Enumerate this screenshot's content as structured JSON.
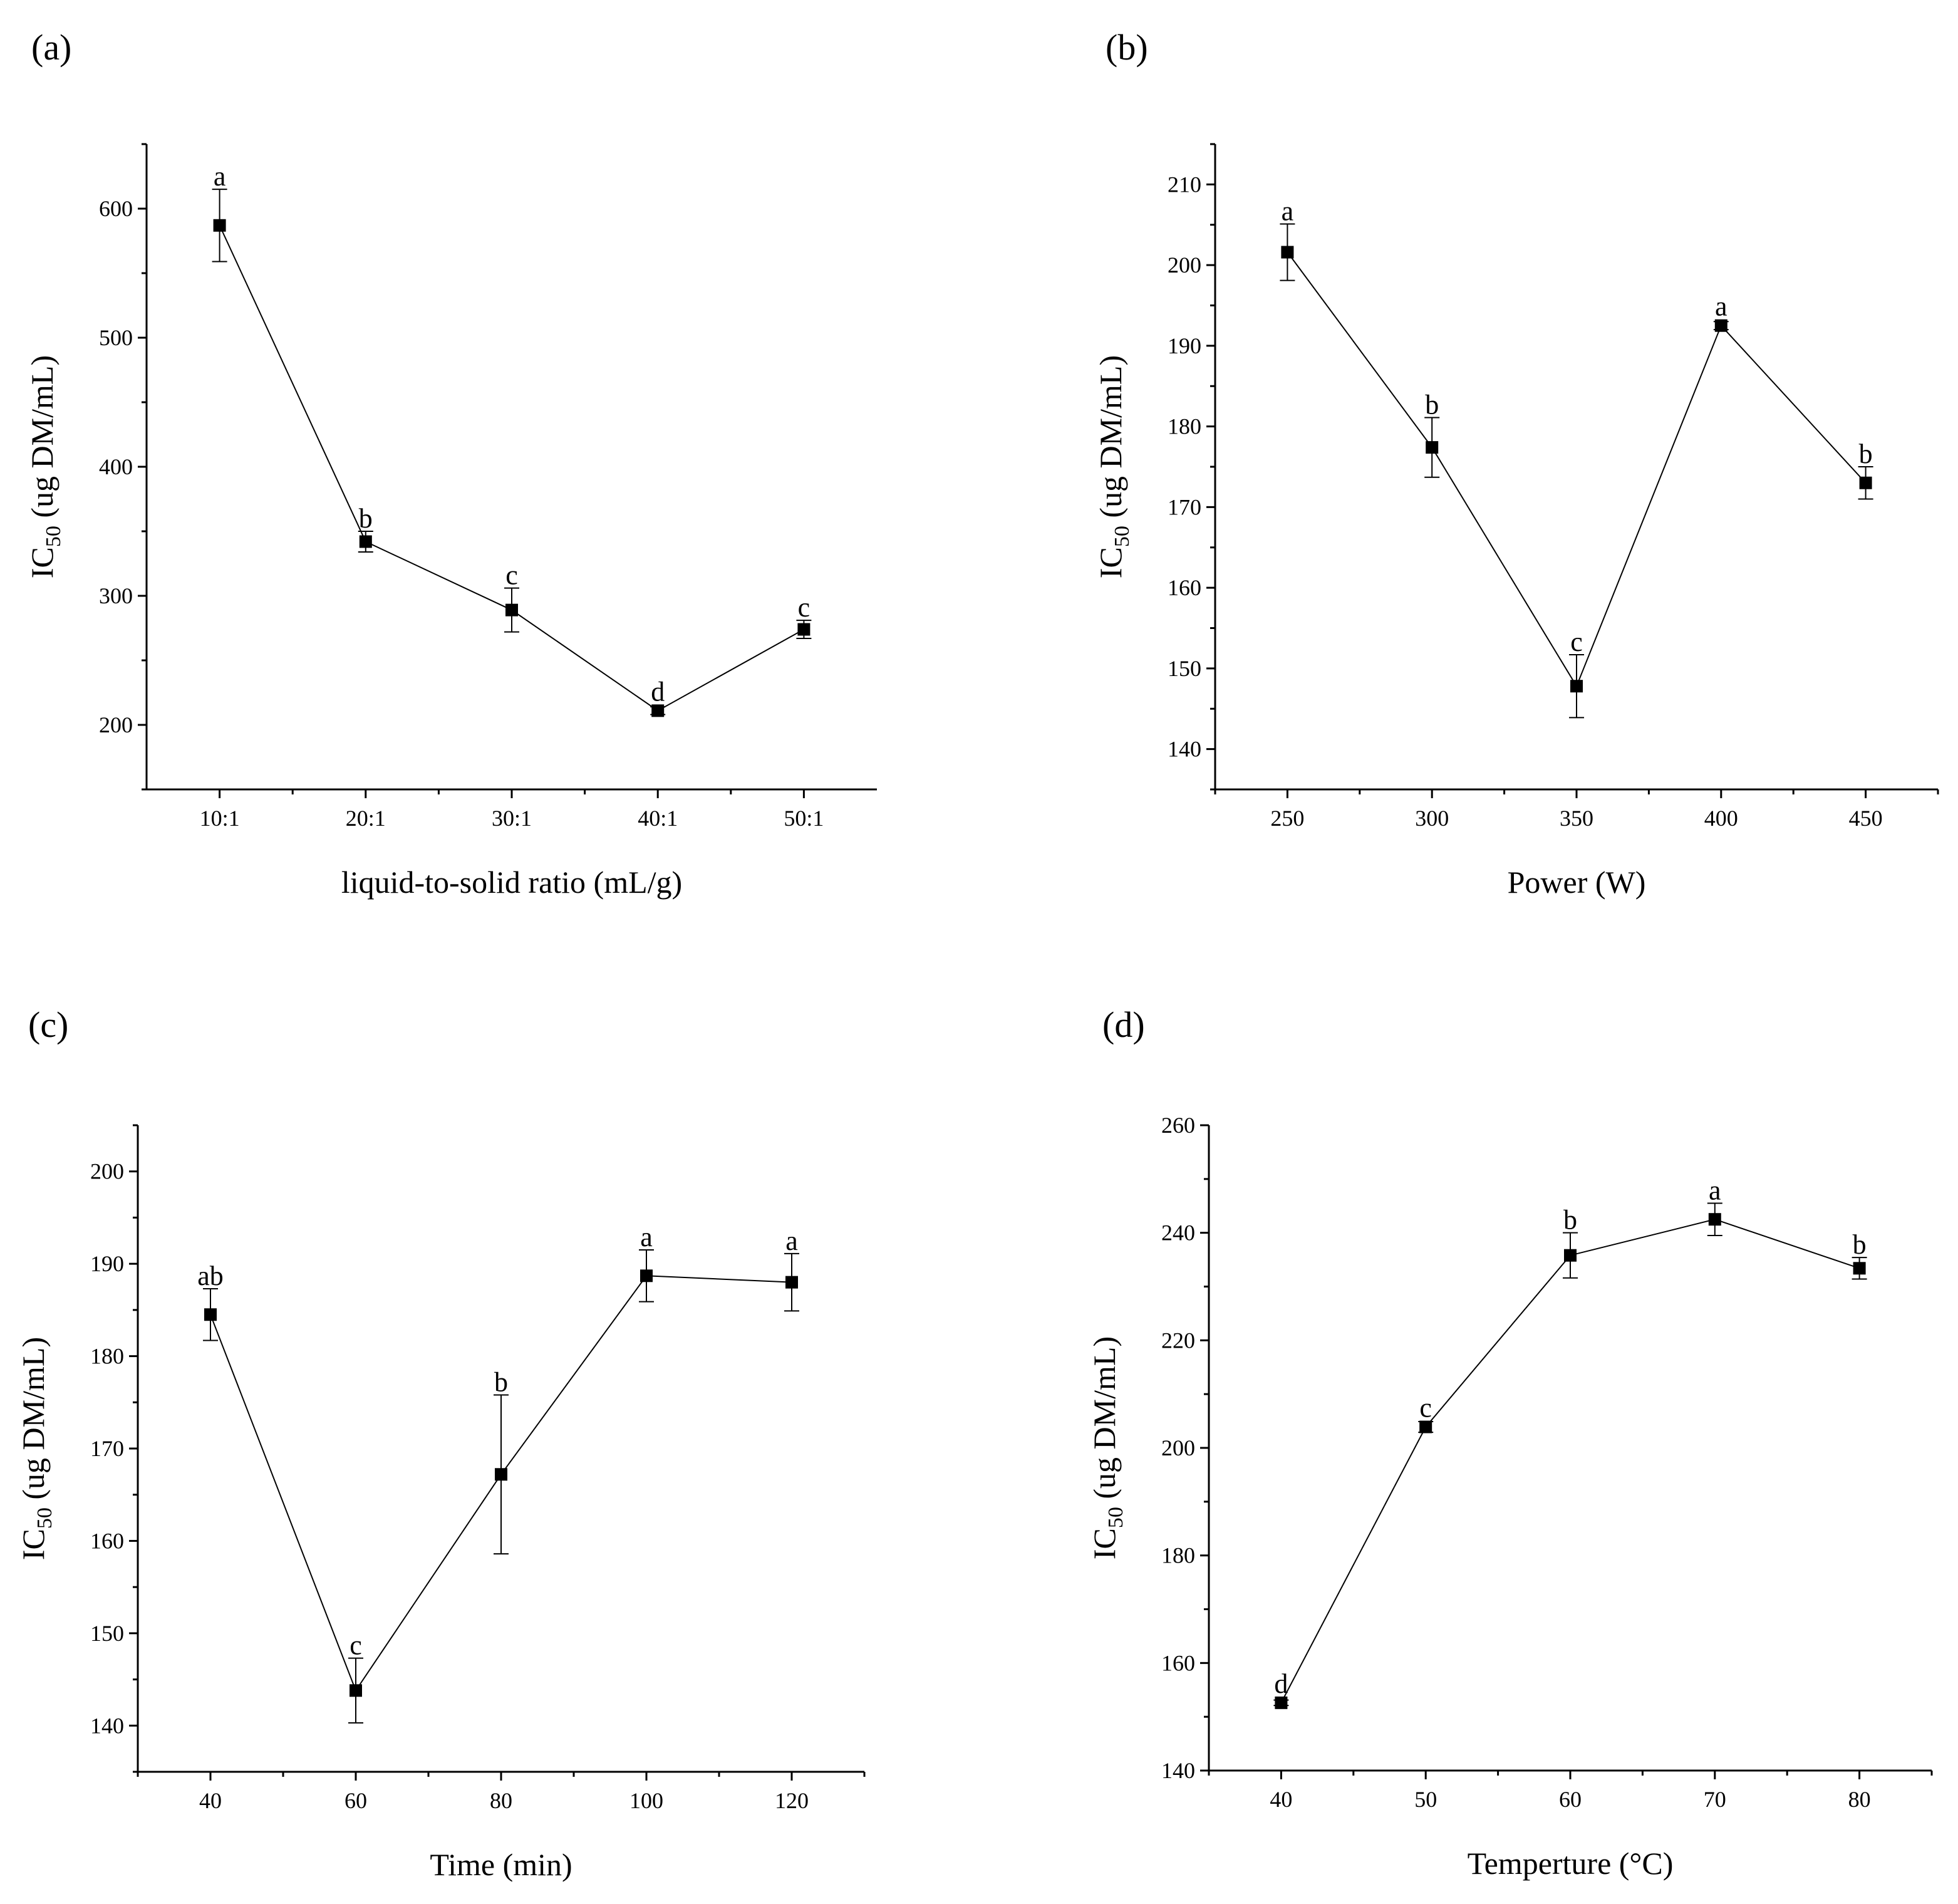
{
  "chart_data": [
    {
      "type": "line",
      "panel_label": "(a)",
      "xlabel": "liquid-to-solid ratio (mL/g)",
      "ylabel": {
        "main": "IC",
        "sub": "50",
        "rest": " (ug DM/mL)"
      },
      "categories": [
        "10:1",
        "20:1",
        "30:1",
        "40:1",
        "50:1"
      ],
      "ylim": [
        150,
        650
      ],
      "yticks": [
        200,
        300,
        400,
        500,
        600
      ],
      "series": [
        {
          "color": "#000000",
          "values": [
            587,
            342,
            289,
            211,
            274
          ],
          "errors": [
            28,
            8,
            17,
            3,
            7
          ],
          "annotations": [
            "a",
            "b",
            "c",
            "d",
            "c"
          ]
        }
      ]
    },
    {
      "type": "line",
      "panel_label": "(b)",
      "xlabel": "Power (W)",
      "ylabel": {
        "main": "IC",
        "sub": "50",
        "rest": " (ug DM/mL)"
      },
      "x": [
        250,
        300,
        350,
        400,
        450
      ],
      "xlim": [
        225,
        475
      ],
      "xticks": [
        250,
        300,
        350,
        400,
        450
      ],
      "ylim": [
        135,
        215
      ],
      "yticks": [
        140,
        150,
        160,
        170,
        180,
        190,
        200,
        210
      ],
      "series": [
        {
          "color": "#000000",
          "values": [
            201.6,
            177.4,
            147.8,
            192.5,
            173.0
          ],
          "errors": [
            3.5,
            3.7,
            3.9,
            0.5,
            2
          ],
          "annotations": [
            "a",
            "b",
            "c",
            "a",
            "b"
          ]
        }
      ]
    },
    {
      "type": "line",
      "panel_label": "(c)",
      "xlabel": "Time (min)",
      "ylabel": {
        "main": "IC",
        "sub": "50",
        "rest": " (ug DM/mL)"
      },
      "x": [
        40,
        60,
        80,
        100,
        120
      ],
      "xlim": [
        30,
        130
      ],
      "xticks": [
        40,
        60,
        80,
        100,
        120
      ],
      "ylim": [
        135,
        205
      ],
      "yticks": [
        140,
        150,
        160,
        170,
        180,
        190,
        200
      ],
      "series": [
        {
          "color": "#000000",
          "values": [
            184.5,
            143.8,
            167.2,
            188.7,
            188.0
          ],
          "errors": [
            2.8,
            3.5,
            8.6,
            2.8,
            3.1
          ],
          "annotations": [
            "ab",
            "c",
            "b",
            "a",
            "a"
          ]
        }
      ]
    },
    {
      "type": "line",
      "panel_label": "(d)",
      "xlabel": "Temperture (°C)",
      "ylabel": {
        "main": "IC",
        "sub": "50",
        "rest": " (ug DM/mL)"
      },
      "x": [
        40,
        50,
        60,
        70,
        80
      ],
      "xlim": [
        35,
        85
      ],
      "xticks": [
        40,
        50,
        60,
        70,
        80
      ],
      "ylim": [
        140,
        260
      ],
      "yticks": [
        140,
        160,
        180,
        200,
        220,
        240,
        260
      ],
      "series": [
        {
          "color": "#000000",
          "values": [
            152.6,
            203.9,
            235.8,
            242.5,
            233.4
          ],
          "errors": [
            0.5,
            1,
            4.2,
            3,
            2
          ],
          "annotations": [
            "d",
            "c",
            "b",
            "a",
            "b"
          ]
        }
      ]
    }
  ]
}
